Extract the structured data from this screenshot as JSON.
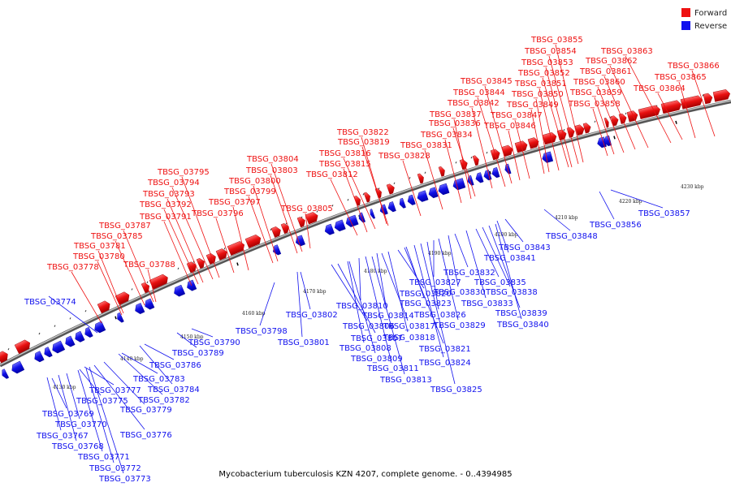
{
  "caption": "Mycobacterium tuberculosis KZN 4207, complete genome. - 0..4394985",
  "legend": [
    {
      "label": "Forward",
      "color": "#ee1111"
    },
    {
      "label": "Reverse",
      "color": "#1111ee"
    }
  ],
  "colors": {
    "forward": "#ee1111",
    "reverse": "#1111ee",
    "backbone": "#888888"
  },
  "ticks": [
    "4130 kbp",
    "4140 kbp",
    "4150 kbp",
    "4160 kbp",
    "4170 kbp",
    "4180 kbp",
    "4190 kbp",
    "4200 kbp",
    "4210 kbp",
    "4220 kbp",
    "4230 kbp"
  ],
  "forward_labels": [
    "TBSG_03778",
    "TBSG_03780",
    "TBSG_03781",
    "TBSG_03785",
    "TBSG_03787",
    "TBSG_03788",
    "TBSG_03791",
    "TBSG_03792",
    "TBSG_03793",
    "TBSG_03794",
    "TBSG_03795",
    "TBSG_03796",
    "TBSG_03797",
    "TBSG_03799",
    "TBSG_03800",
    "TBSG_03803",
    "TBSG_03804",
    "TBSG_03805",
    "TBSG_03812",
    "TBSG_03815",
    "TBSG_03816",
    "TBSG_03819",
    "TBSG_03822",
    "TBSG_03828",
    "TBSG_03831",
    "TBSG_03834",
    "TBSG_03836",
    "TBSG_03837",
    "TBSG_03842",
    "TBSG_03844",
    "TBSG_03845",
    "TBSG_03846",
    "TBSG_03847",
    "TBSG_03849",
    "TBSG_03850",
    "TBSG_03851",
    "TBSG_03852",
    "TBSG_03853",
    "TBSG_03854",
    "TBSG_03855",
    "TBSG_03858",
    "TBSG_03859",
    "TBSG_03860",
    "TBSG_03861",
    "TBSG_03862",
    "TBSG_03863",
    "TBSG_03864",
    "TBSG_03865",
    "TBSG_03866"
  ],
  "reverse_labels": [
    "TBSG_03774",
    "TBSG_03767",
    "TBSG_03768",
    "TBSG_03769",
    "TBSG_03770",
    "TBSG_03771",
    "TBSG_03772",
    "TBSG_03773",
    "TBSG_03775",
    "TBSG_03776",
    "TBSG_03777",
    "TBSG_03779",
    "TBSG_03782",
    "TBSG_03783",
    "TBSG_03784",
    "TBSG_03786",
    "TBSG_03789",
    "TBSG_03790",
    "TBSG_03798",
    "TBSG_03801",
    "TBSG_03802",
    "TBSG_03806",
    "TBSG_03807",
    "TBSG_03808",
    "TBSG_03809",
    "TBSG_03810",
    "TBSG_03811",
    "TBSG_03813",
    "TBSG_03814",
    "TBSG_03817",
    "TBSG_03818",
    "TBSG_03820",
    "TBSG_03821",
    "TBSG_03823",
    "TBSG_03824",
    "TBSG_03825",
    "TBSG_03826",
    "TBSG_03827",
    "TBSG_03829",
    "TBSG_03830",
    "TBSG_03832",
    "TBSG_03833",
    "TBSG_03835",
    "TBSG_03838",
    "TBSG_03839",
    "TBSG_03840",
    "TBSG_03841",
    "TBSG_03843",
    "TBSG_03848",
    "TBSG_03856",
    "TBSG_03857"
  ]
}
